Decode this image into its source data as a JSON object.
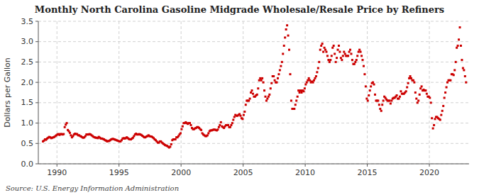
{
  "chart_data": {
    "type": "scatter",
    "title": "Monthly North Carolina Gasoline Midgrade Wholesale/Resale Price by Refiners",
    "y_label": "Dollars per Gallon",
    "annotation": "Source: U.S. Energy Information Administration",
    "color": "#cc0000",
    "marker": "square",
    "grid": true,
    "xlim": [
      1988.5,
      2023.2
    ],
    "xticks": [
      1990,
      1995,
      2000,
      2005,
      2010,
      2015,
      2020
    ],
    "ylim": [
      0.0,
      3.5
    ],
    "yticks": [
      {
        "value": 0.0,
        "label": "0.0"
      },
      0.5,
      {
        "value": 1.0,
        "label": "1.0"
      },
      1.5,
      {
        "value": 2.0,
        "label": "2.0"
      },
      2.5,
      {
        "value": 3.0,
        "label": "3.0"
      },
      3.5
    ],
    "x": [
      1988.875,
      1988.9583333333,
      1989.0416666667,
      1989.125,
      1989.2083333333,
      1989.2916666667,
      1989.375,
      1989.4583333333,
      1989.5416666667,
      1989.625,
      1989.7083333333,
      1989.7916666667,
      1989.875,
      1989.9583333333,
      1990.0416666667,
      1990.125,
      1990.2083333333,
      1990.2916666667,
      1990.375,
      1990.4583333333,
      1990.5416666667,
      1990.625,
      1990.7083333333,
      1990.7916666667,
      1990.875,
      1990.9583333333,
      1991.0416666667,
      1991.125,
      1991.2083333333,
      1991.2916666667,
      1991.375,
      1991.4583333333,
      1991.5416666667,
      1991.625,
      1991.7083333333,
      1991.7916666667,
      1991.875,
      1991.9583333333,
      1992.0416666667,
      1992.125,
      1992.2083333333,
      1992.2916666667,
      1992.375,
      1992.4583333333,
      1992.5416666667,
      1992.625,
      1992.7083333333,
      1992.7916666667,
      1992.875,
      1992.9583333333,
      1993.0416666667,
      1993.125,
      1993.2083333333,
      1993.2916666667,
      1993.375,
      1993.4583333333,
      1993.5416666667,
      1993.625,
      1993.7083333333,
      1993.7916666667,
      1993.875,
      1993.9583333333,
      1994.0416666667,
      1994.125,
      1994.2083333333,
      1994.2916666667,
      1994.375,
      1994.4583333333,
      1994.5416666667,
      1994.625,
      1994.7083333333,
      1994.7916666667,
      1994.875,
      1994.9583333333,
      1995.0416666667,
      1995.125,
      1995.2083333333,
      1995.2916666667,
      1995.375,
      1995.4583333333,
      1995.5416666667,
      1995.625,
      1995.7083333333,
      1995.7916666667,
      1995.875,
      1995.9583333333,
      1996.0416666667,
      1996.125,
      1996.2083333333,
      1996.2916666667,
      1996.375,
      1996.4583333333,
      1996.5416666667,
      1996.625,
      1996.7083333333,
      1996.7916666667,
      1996.875,
      1996.9583333333,
      1997.0416666667,
      1997.125,
      1997.2083333333,
      1997.2916666667,
      1997.375,
      1997.4583333333,
      1997.5416666667,
      1997.625,
      1997.7083333333,
      1997.7916666667,
      1997.875,
      1997.9583333333,
      1998.0416666667,
      1998.125,
      1998.2083333333,
      1998.2916666667,
      1998.375,
      1998.4583333333,
      1998.5416666667,
      1998.625,
      1998.7083333333,
      1998.7916666667,
      1998.875,
      1998.9583333333,
      1999.0416666667,
      1999.125,
      1999.2083333333,
      1999.2916666667,
      1999.375,
      1999.4583333333,
      1999.5416666667,
      1999.625,
      1999.7083333333,
      1999.7916666667,
      1999.875,
      1999.9583333333,
      2000.0416666667,
      2000.125,
      2000.2083333333,
      2000.2916666667,
      2000.375,
      2000.4583333333,
      2000.5416666667,
      2000.625,
      2000.7083333333,
      2000.7916666667,
      2000.875,
      2000.9583333333,
      2001.0416666667,
      2001.125,
      2001.2083333333,
      2001.2916666667,
      2001.375,
      2001.4583333333,
      2001.5416666667,
      2001.625,
      2001.7083333333,
      2001.7916666667,
      2001.875,
      2001.9583333333,
      2002.0416666667,
      2002.125,
      2002.2083333333,
      2002.2916666667,
      2002.375,
      2002.4583333333,
      2002.5416666667,
      2002.625,
      2002.7083333333,
      2002.7916666667,
      2002.875,
      2002.9583333333,
      2003.0416666667,
      2003.125,
      2003.2083333333,
      2003.2916666667,
      2003.375,
      2003.4583333333,
      2003.5416666667,
      2003.625,
      2003.7083333333,
      2003.7916666667,
      2003.875,
      2003.9583333333,
      2004.0416666667,
      2004.125,
      2004.2083333333,
      2004.2916666667,
      2004.375,
      2004.4583333333,
      2004.5416666667,
      2004.625,
      2004.7083333333,
      2004.7916666667,
      2004.875,
      2004.9583333333,
      2005.0416666667,
      2005.125,
      2005.2083333333,
      2005.2916666667,
      2005.375,
      2005.4583333333,
      2005.5416666667,
      2005.625,
      2005.7083333333,
      2005.7916666667,
      2005.875,
      2005.9583333333,
      2006.0416666667,
      2006.125,
      2006.2083333333,
      2006.2916666667,
      2006.375,
      2006.4583333333,
      2006.5416666667,
      2006.625,
      2006.7083333333,
      2006.7916666667,
      2006.875,
      2006.9583333333,
      2007.0416666667,
      2007.125,
      2007.2083333333,
      2007.2916666667,
      2007.375,
      2007.4583333333,
      2007.5416666667,
      2007.625,
      2007.7083333333,
      2007.7916666667,
      2007.875,
      2007.9583333333,
      2008.0416666667,
      2008.125,
      2008.2083333333,
      2008.2916666667,
      2008.375,
      2008.4583333333,
      2008.5416666667,
      2008.625,
      2008.7083333333,
      2008.7916666667,
      2008.875,
      2008.9583333333,
      2009.0416666667,
      2009.125,
      2009.2083333333,
      2009.2916666667,
      2009.375,
      2009.4583333333,
      2009.5416666667,
      2009.625,
      2009.7083333333,
      2009.7916666667,
      2009.875,
      2009.9583333333,
      2010.0416666667,
      2010.125,
      2010.2083333333,
      2010.2916666667,
      2010.375,
      2010.4583333333,
      2010.5416666667,
      2010.625,
      2010.7083333333,
      2010.7916666667,
      2010.875,
      2010.9583333333,
      2011.0416666667,
      2011.125,
      2011.2083333333,
      2011.2916666667,
      2011.375,
      2011.4583333333,
      2011.5416666667,
      2011.625,
      2011.7083333333,
      2011.7916666667,
      2011.875,
      2011.9583333333,
      2012.0416666667,
      2012.125,
      2012.2083333333,
      2012.2916666667,
      2012.375,
      2012.4583333333,
      2012.5416666667,
      2012.625,
      2012.7083333333,
      2012.7916666667,
      2012.875,
      2012.9583333333,
      2013.0416666667,
      2013.125,
      2013.2083333333,
      2013.2916666667,
      2013.375,
      2013.4583333333,
      2013.5416666667,
      2013.625,
      2013.7083333333,
      2013.7916666667,
      2013.875,
      2013.9583333333,
      2014.0416666667,
      2014.125,
      2014.2083333333,
      2014.2916666667,
      2014.375,
      2014.4583333333,
      2014.5416666667,
      2014.625,
      2014.7083333333,
      2014.7916666667,
      2014.875,
      2014.9583333333,
      2015.0416666667,
      2015.125,
      2015.2083333333,
      2015.2916666667,
      2015.375,
      2015.4583333333,
      2015.5416666667,
      2015.625,
      2015.7083333333,
      2015.7916666667,
      2015.875,
      2015.9583333333,
      2016.0416666667,
      2016.125,
      2016.2083333333,
      2016.2916666667,
      2016.375,
      2016.4583333333,
      2016.5416666667,
      2016.625,
      2016.7083333333,
      2016.7916666667,
      2016.875,
      2016.9583333333,
      2017.0416666667,
      2017.125,
      2017.2083333333,
      2017.2916666667,
      2017.375,
      2017.4583333333,
      2017.5416666667,
      2017.625,
      2017.7083333333,
      2017.7916666667,
      2017.875,
      2017.9583333333,
      2018.0416666667,
      2018.125,
      2018.2083333333,
      2018.2916666667,
      2018.375,
      2018.4583333333,
      2018.5416666667,
      2018.625,
      2018.7083333333,
      2018.7916666667,
      2018.875,
      2018.9583333333,
      2019.0416666667,
      2019.125,
      2019.2083333333,
      2019.2916666667,
      2019.375,
      2019.4583333333,
      2019.5416666667,
      2019.625,
      2019.7083333333,
      2019.7916666667,
      2019.875,
      2019.9583333333,
      2020.0416666667,
      2020.125,
      2020.2083333333,
      2020.2916666667,
      2020.375,
      2020.4583333333,
      2020.5416666667,
      2020.625,
      2020.7083333333,
      2020.7916666667,
      2020.875,
      2020.9583333333,
      2021.0416666667,
      2021.125,
      2021.2083333333,
      2021.2916666667,
      2021.375,
      2021.4583333333,
      2021.5416666667,
      2021.625,
      2021.7083333333,
      2021.7916666667,
      2021.875,
      2021.9583333333,
      2022.0416666667,
      2022.125,
      2022.2083333333,
      2022.2916666667,
      2022.375,
      2022.4583333333,
      2022.5416666667,
      2022.625,
      2022.7083333333,
      2022.7916666667,
      2022.875,
      2022.9583333333
    ],
    "values": [
      0.55,
      0.57,
      0.6,
      0.59,
      0.62,
      0.64,
      0.66,
      0.65,
      0.63,
      0.64,
      0.65,
      0.66,
      0.68,
      0.7,
      0.72,
      0.73,
      0.71,
      0.73,
      0.73,
      0.72,
      0.73,
      0.9,
      0.96,
      1.0,
      0.83,
      0.8,
      0.76,
      0.7,
      0.65,
      0.68,
      0.72,
      0.74,
      0.73,
      0.73,
      0.7,
      0.7,
      0.68,
      0.67,
      0.65,
      0.64,
      0.65,
      0.68,
      0.72,
      0.72,
      0.72,
      0.73,
      0.72,
      0.7,
      0.68,
      0.66,
      0.65,
      0.64,
      0.64,
      0.63,
      0.66,
      0.64,
      0.62,
      0.62,
      0.61,
      0.6,
      0.58,
      0.57,
      0.55,
      0.56,
      0.56,
      0.58,
      0.6,
      0.61,
      0.61,
      0.6,
      0.59,
      0.58,
      0.57,
      0.56,
      0.55,
      0.55,
      0.58,
      0.62,
      0.63,
      0.62,
      0.63,
      0.65,
      0.63,
      0.61,
      0.6,
      0.6,
      0.62,
      0.64,
      0.68,
      0.72,
      0.74,
      0.72,
      0.72,
      0.73,
      0.72,
      0.71,
      0.69,
      0.67,
      0.65,
      0.65,
      0.67,
      0.68,
      0.7,
      0.68,
      0.67,
      0.67,
      0.65,
      0.63,
      0.6,
      0.58,
      0.55,
      0.52,
      0.52,
      0.55,
      0.55,
      0.52,
      0.5,
      0.48,
      0.46,
      0.45,
      0.44,
      0.42,
      0.4,
      0.42,
      0.48,
      0.58,
      0.6,
      0.6,
      0.6,
      0.65,
      0.65,
      0.68,
      0.72,
      0.75,
      0.85,
      0.92,
      1.0,
      1.0,
      1.02,
      1.0,
      0.98,
      1.0,
      1.0,
      0.95,
      0.88,
      0.85,
      0.85,
      0.87,
      0.88,
      0.9,
      0.9,
      0.88,
      0.85,
      0.83,
      0.75,
      0.72,
      0.7,
      0.68,
      0.68,
      0.7,
      0.75,
      0.8,
      0.82,
      0.82,
      0.83,
      0.84,
      0.84,
      0.83,
      0.82,
      0.84,
      0.9,
      0.95,
      1.02,
      0.92,
      0.9,
      0.88,
      0.92,
      0.95,
      0.95,
      0.95,
      0.9,
      0.9,
      0.95,
      1.0,
      1.08,
      1.15,
      1.2,
      1.18,
      1.18,
      1.2,
      1.22,
      1.18,
      1.12,
      1.1,
      1.2,
      1.28,
      1.45,
      1.55,
      1.55,
      1.55,
      1.6,
      1.75,
      1.8,
      1.72,
      1.65,
      1.65,
      1.68,
      1.7,
      1.85,
      2.05,
      2.1,
      2.05,
      2.1,
      2.0,
      1.8,
      1.65,
      1.55,
      1.6,
      1.65,
      1.7,
      1.85,
      1.98,
      2.15,
      2.15,
      2.05,
      2.0,
      2.0,
      2.1,
      2.2,
      2.3,
      2.4,
      2.5,
      2.7,
      2.9,
      3.1,
      3.3,
      3.4,
      3.15,
      2.8,
      2.2,
      1.55,
      1.35,
      1.35,
      1.35,
      1.45,
      1.55,
      1.65,
      1.8,
      1.75,
      1.8,
      1.75,
      1.8,
      1.78,
      1.85,
      1.95,
      2.0,
      2.05,
      2.1,
      2.05,
      2.0,
      2.02,
      2.0,
      2.05,
      2.1,
      2.15,
      2.25,
      2.35,
      2.5,
      2.8,
      2.9,
      2.95,
      2.75,
      2.85,
      2.8,
      2.75,
      2.65,
      2.55,
      2.5,
      2.55,
      2.65,
      2.85,
      2.9,
      2.7,
      2.5,
      2.6,
      2.8,
      2.9,
      2.75,
      2.6,
      2.55,
      2.65,
      2.75,
      2.7,
      2.65,
      2.65,
      2.65,
      2.75,
      2.8,
      2.7,
      2.55,
      2.45,
      2.45,
      2.5,
      2.55,
      2.65,
      2.75,
      2.8,
      2.75,
      2.65,
      2.55,
      2.4,
      2.2,
      1.9,
      1.6,
      1.55,
      1.68,
      1.8,
      1.9,
      1.98,
      2.0,
      1.95,
      1.7,
      1.55,
      1.55,
      1.55,
      1.45,
      1.35,
      1.3,
      1.45,
      1.55,
      1.65,
      1.62,
      1.58,
      1.55,
      1.55,
      1.55,
      1.48,
      1.55,
      1.6,
      1.62,
      1.62,
      1.65,
      1.68,
      1.6,
      1.6,
      1.65,
      1.78,
      1.72,
      1.72,
      1.72,
      1.75,
      1.78,
      1.88,
      1.98,
      2.1,
      2.15,
      2.1,
      2.05,
      2.05,
      2.0,
      1.75,
      1.6,
      1.5,
      1.55,
      1.7,
      1.85,
      1.9,
      1.8,
      1.82,
      1.8,
      1.8,
      1.72,
      1.65,
      1.65,
      1.62,
      1.5,
      1.12,
      0.87,
      0.95,
      1.1,
      1.15,
      1.15,
      1.12,
      1.1,
      1.08,
      1.2,
      1.3,
      1.42,
      1.62,
      1.75,
      1.88,
      2.0,
      2.05,
      2.05,
      2.05,
      2.2,
      2.2,
      2.18,
      2.3,
      2.5,
      2.85,
      2.9,
      3.05,
      3.35,
      2.9,
      2.55,
      2.35,
      2.3,
      2.15,
      2.0
    ]
  }
}
